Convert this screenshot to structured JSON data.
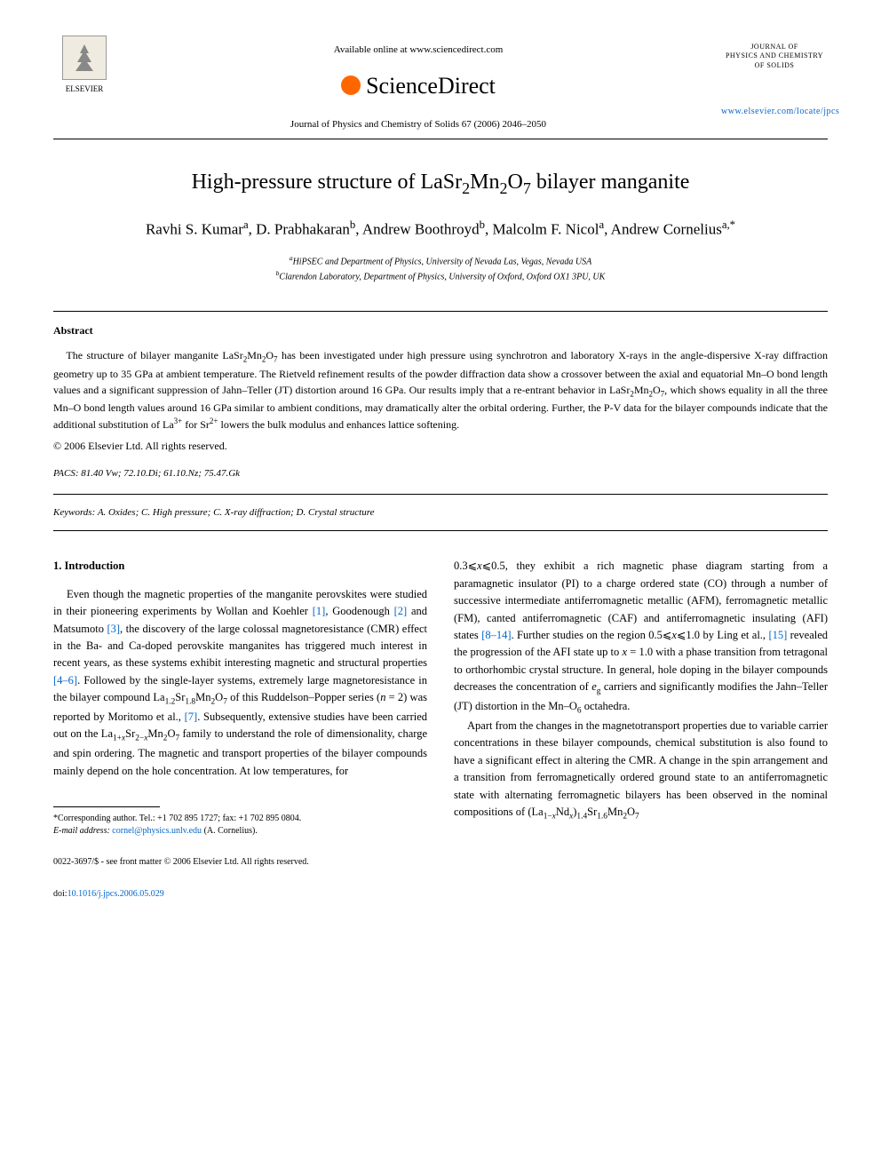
{
  "header": {
    "available_text": "Available online at www.sciencedirect.com",
    "sciencedirect": "ScienceDirect",
    "journal_ref": "Journal of Physics and Chemistry of Solids 67 (2006) 2046–2050",
    "publisher_name": "ELSEVIER",
    "journal_box_line1": "JOURNAL OF",
    "journal_box_line2": "PHYSICS AND CHEMISTRY",
    "journal_box_line3": "OF SOLIDS",
    "journal_link": "www.elsevier.com/locate/jpcs"
  },
  "article": {
    "title_html": "High-pressure structure of LaSr<sub>2</sub>Mn<sub>2</sub>O<sub>7</sub> bilayer manganite",
    "authors_html": "Ravhi S. Kumar<sup>a</sup>, D. Prabhakaran<sup>b</sup>, Andrew Boothroyd<sup>b</sup>, Malcolm F. Nicol<sup>a</sup>, Andrew Cornelius<sup>a,*</sup>",
    "affiliations": {
      "a": "HiPSEC and Department of Physics, University of Nevada Las, Vegas, Nevada USA",
      "b": "Clarendon Laboratory, Department of Physics, University of Oxford, Oxford OX1 3PU, UK"
    }
  },
  "abstract": {
    "heading": "Abstract",
    "text_html": "The structure of bilayer manganite LaSr<sub>2</sub>Mn<sub>2</sub>O<sub>7</sub> has been investigated under high pressure using synchrotron and laboratory X-rays in the angle-dispersive X-ray diffraction geometry up to 35 GPa at ambient temperature. The Rietveld refinement results of the powder diffraction data show a crossover between the axial and equatorial Mn–O bond length values and a significant suppression of Jahn–Teller (JT) distortion around 16 GPa. Our results imply that a re-entrant behavior in LaSr<sub>2</sub>Mn<sub>2</sub>O<sub>7</sub>, which shows equality in all the three Mn–O bond length values around 16 GPa similar to ambient conditions, may dramatically alter the orbital ordering. Further, the P-V data for the bilayer compounds indicate that the additional substitution of La<sup>3+</sup> for Sr<sup>2+</sup> lowers the bulk modulus and enhances lattice softening.",
    "copyright": "© 2006 Elsevier Ltd. All rights reserved."
  },
  "pacs_html": "<span class='ital'>PACS:</span> 81.40 Vw; 72.10.Di; 61.10.Nz; 75.47.Gk",
  "keywords_html": "<span class='ital'>Keywords:</span> A. Oxides; C. High pressure; C. X-ray diffraction; D. Crystal structure",
  "body": {
    "section_heading": "1.  Introduction",
    "col1_para1_html": "Even though the magnetic properties of the manganite perovskites were studied in their pioneering experiments by Wollan and Koehler <span class='ref-link'>[1]</span>, Goodenough <span class='ref-link'>[2]</span> and Matsumoto <span class='ref-link'>[3]</span>, the discovery of the large colossal magnetoresistance (CMR) effect in the Ba- and Ca-doped perovskite manganites has triggered much interest in recent years, as these systems exhibit interesting magnetic and structural properties <span class='ref-link'>[4–6]</span>. Followed by the single-layer systems, extremely large magnetoresistance in the bilayer compound La<sub>1.2</sub>Sr<sub>1.8</sub>Mn<sub>2</sub>O<sub>7</sub> of this Ruddelson–Popper series (<span class='ital'>n</span> = 2) was reported by Moritomo et al., <span class='ref-link'>[7]</span>. Subsequently, extensive studies have been carried out on the La<sub>1+<span class='ital'>x</span></sub>Sr<sub>2−<span class='ital'>x</span></sub>Mn<sub>2</sub>O<sub>7</sub> family to understand the role of dimensionality, charge and spin ordering. The magnetic and transport properties of the bilayer compounds mainly depend on the hole concentration. At low temperatures, for",
    "col2_para1_html": "0.3⩽<span class='ital'>x</span>⩽0.5, they exhibit a rich magnetic phase diagram starting from a paramagnetic insulator (PI) to a charge ordered state (CO) through a number of successive intermediate antiferromagnetic metallic (AFM), ferromagnetic metallic (FM), canted antiferromagnetic (CAF) and antiferromagnetic insulating (AFI) states <span class='ref-link'>[8–14]</span>. Further studies on the region 0.5⩽<span class='ital'>x</span>⩽1.0 by Ling et al., <span class='ref-link'>[15]</span> revealed the progression of the AFI state up to <span class='ital'>x</span> = 1.0 with a phase transition from tetragonal to orthorhombic crystal structure. In general, hole doping in the bilayer compounds decreases the concentration of <span class='ital'>e</span><sub>g</sub> carriers and significantly modifies the Jahn–Teller (JT) distortion in the Mn–O<sub>6</sub> octahedra.",
    "col2_para2_html": "Apart from the changes in the magnetotransport properties due to variable carrier concentrations in these bilayer compounds, chemical substitution is also found to have a significant effect in altering the CMR. A change in the spin arrangement and a transition from ferromagnetically ordered ground state to an antiferromagnetic state with alternating ferromagnetic bilayers has been observed in the nominal compositions of (La<sub>1−<span class='ital'>x</span></sub>Nd<sub><span class='ital'>x</span></sub>)<sub>1.4</sub>Sr<sub>1.6</sub>Mn<sub>2</sub>O<sub>7</sub>"
  },
  "footnote": {
    "corresponding_html": "*Corresponding author. Tel.: +1 702 895 1727; fax: +1 702 895 0804.",
    "email_label": "E-mail address:",
    "email": "cornel@physics.unlv.edu",
    "email_name": "(A. Cornelius)."
  },
  "footer": {
    "front_matter": "0022-3697/$ - see front matter © 2006 Elsevier Ltd. All rights reserved.",
    "doi_label": "doi:",
    "doi": "10.1016/j.jpcs.2006.05.029"
  },
  "colors": {
    "text": "#000000",
    "link": "#0066cc",
    "background": "#ffffff",
    "sd_orange": "#ff6600"
  },
  "typography": {
    "title_fontsize": 24,
    "authors_fontsize": 17,
    "body_fontsize": 12.5,
    "abstract_fontsize": 12,
    "affiliation_fontsize": 10,
    "footnote_fontsize": 10
  }
}
